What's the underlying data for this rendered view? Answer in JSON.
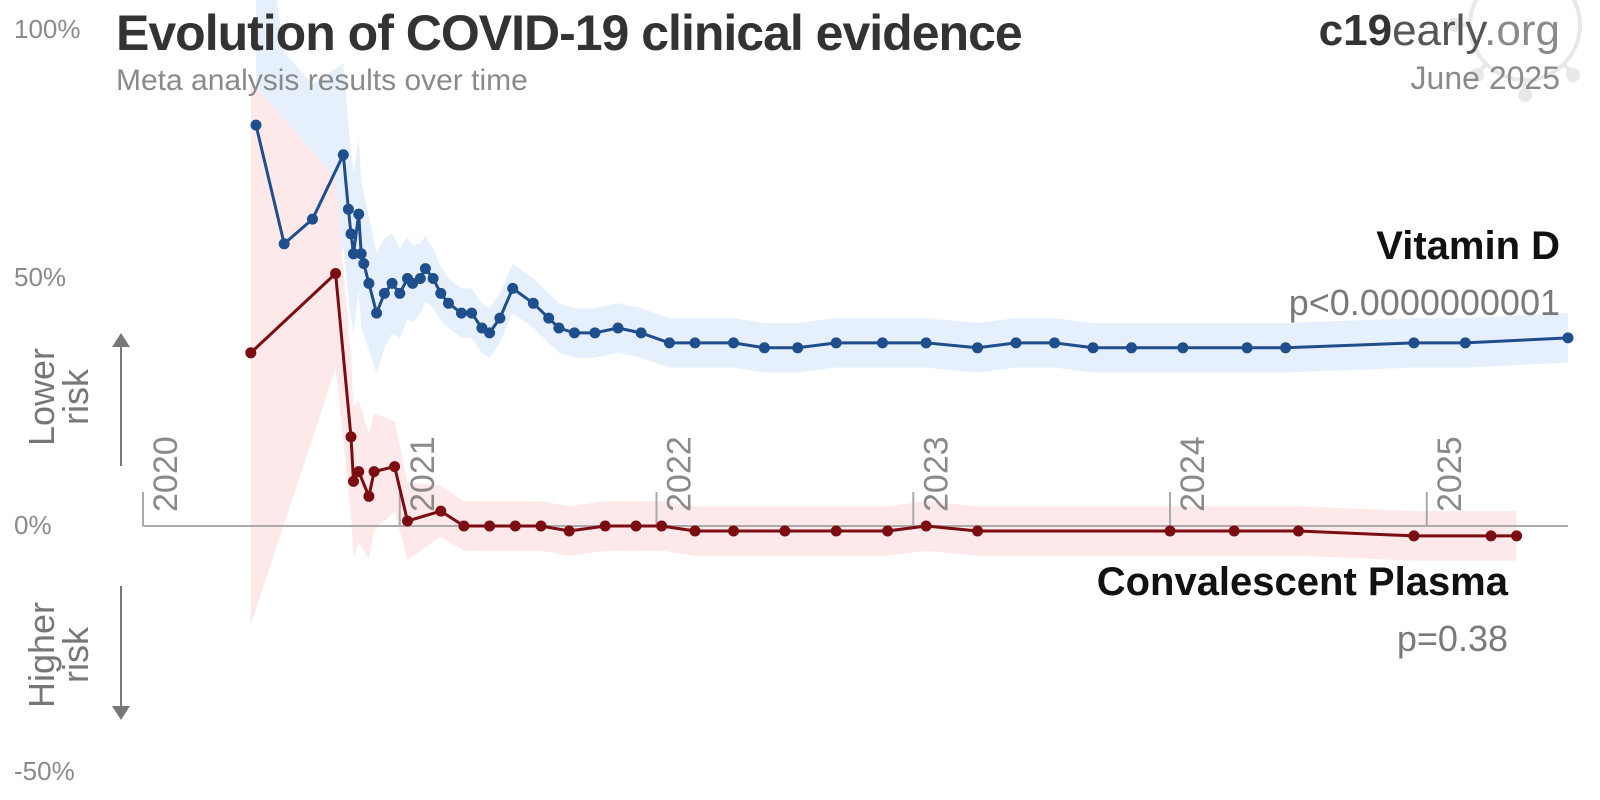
{
  "header": {
    "title": "Evolution of COVID-19 clinical evidence",
    "subtitle": "Meta analysis results over time",
    "brand_bold": "c19",
    "brand_mid": "early",
    "brand_tld": ".org",
    "date": "June 2025"
  },
  "risk_labels": {
    "lower_line1": "Lower",
    "lower_line2": "risk",
    "higher_line1": "Higher",
    "higher_line2": "risk"
  },
  "colors": {
    "vitamin_d": "#1f4e8c",
    "vitamin_d_band": "#e6f0fd",
    "plasma": "#7b0d12",
    "plasma_band": "#fde8ea",
    "axis": "#aaaaaa"
  },
  "chart_data": {
    "type": "line",
    "title": "Evolution of COVID-19 clinical evidence",
    "subtitle": "Meta analysis results over time",
    "xlabel": "",
    "ylabel": "",
    "x_range": [
      2020.0,
      2025.55
    ],
    "ylim": [
      -50,
      100
    ],
    "y_ticks": [
      {
        "value": 100,
        "label": "100%"
      },
      {
        "value": 50,
        "label": "50%"
      },
      {
        "value": 0,
        "label": "0%"
      },
      {
        "value": -50,
        "label": "-50%"
      }
    ],
    "x_ticks": [
      {
        "value": 2020,
        "label": "2020"
      },
      {
        "value": 2021,
        "label": "2021"
      },
      {
        "value": 2022,
        "label": "2022"
      },
      {
        "value": 2023,
        "label": "2023"
      },
      {
        "value": 2024,
        "label": "2024"
      },
      {
        "value": 2025,
        "label": "2025"
      }
    ],
    "series": [
      {
        "name": "Vitamin D",
        "p_label": "p<0.0000000001",
        "color_key": "vitamin_d",
        "points": [
          [
            2020.44,
            81
          ],
          [
            2020.55,
            57
          ],
          [
            2020.66,
            62
          ],
          [
            2020.78,
            75
          ],
          [
            2020.8,
            64
          ],
          [
            2020.81,
            59
          ],
          [
            2020.82,
            55
          ],
          [
            2020.84,
            63
          ],
          [
            2020.85,
            55
          ],
          [
            2020.86,
            53
          ],
          [
            2020.88,
            49
          ],
          [
            2020.91,
            43
          ],
          [
            2020.94,
            47
          ],
          [
            2020.97,
            49
          ],
          [
            2021.0,
            47
          ],
          [
            2021.03,
            50
          ],
          [
            2021.05,
            49
          ],
          [
            2021.08,
            50
          ],
          [
            2021.1,
            52
          ],
          [
            2021.13,
            50
          ],
          [
            2021.16,
            47
          ],
          [
            2021.19,
            45
          ],
          [
            2021.24,
            43
          ],
          [
            2021.28,
            43
          ],
          [
            2021.32,
            40
          ],
          [
            2021.35,
            39
          ],
          [
            2021.39,
            42
          ],
          [
            2021.44,
            48
          ],
          [
            2021.52,
            45
          ],
          [
            2021.58,
            42
          ],
          [
            2021.62,
            40
          ],
          [
            2021.68,
            39
          ],
          [
            2021.76,
            39
          ],
          [
            2021.85,
            40
          ],
          [
            2021.94,
            39
          ],
          [
            2022.05,
            37
          ],
          [
            2022.15,
            37
          ],
          [
            2022.3,
            37
          ],
          [
            2022.42,
            36
          ],
          [
            2022.55,
            36
          ],
          [
            2022.7,
            37
          ],
          [
            2022.88,
            37
          ],
          [
            2023.05,
            37
          ],
          [
            2023.25,
            36
          ],
          [
            2023.4,
            37
          ],
          [
            2023.55,
            37
          ],
          [
            2023.7,
            36
          ],
          [
            2023.85,
            36
          ],
          [
            2024.05,
            36
          ],
          [
            2024.3,
            36
          ],
          [
            2024.45,
            36
          ],
          [
            2024.95,
            37
          ],
          [
            2025.15,
            37
          ],
          [
            2025.55,
            38
          ]
        ]
      },
      {
        "name": "Convalescent Plasma",
        "p_label": "p=0.38",
        "color_key": "plasma",
        "points": [
          [
            2020.42,
            35
          ],
          [
            2020.75,
            51
          ],
          [
            2020.81,
            18
          ],
          [
            2020.82,
            9
          ],
          [
            2020.84,
            11
          ],
          [
            2020.88,
            6
          ],
          [
            2020.9,
            11
          ],
          [
            2020.98,
            12
          ],
          [
            2021.03,
            1
          ],
          [
            2021.16,
            3
          ],
          [
            2021.25,
            0
          ],
          [
            2021.35,
            0
          ],
          [
            2021.45,
            0
          ],
          [
            2021.55,
            0
          ],
          [
            2021.66,
            -1
          ],
          [
            2021.8,
            0
          ],
          [
            2021.92,
            0
          ],
          [
            2022.02,
            0
          ],
          [
            2022.15,
            -1
          ],
          [
            2022.3,
            -1
          ],
          [
            2022.5,
            -1
          ],
          [
            2022.7,
            -1
          ],
          [
            2022.9,
            -1
          ],
          [
            2023.05,
            0
          ],
          [
            2023.25,
            -1
          ],
          [
            2024.0,
            -1
          ],
          [
            2024.25,
            -1
          ],
          [
            2024.5,
            -1
          ],
          [
            2024.95,
            -2
          ],
          [
            2025.25,
            -2
          ],
          [
            2025.35,
            -2
          ]
        ]
      }
    ]
  }
}
